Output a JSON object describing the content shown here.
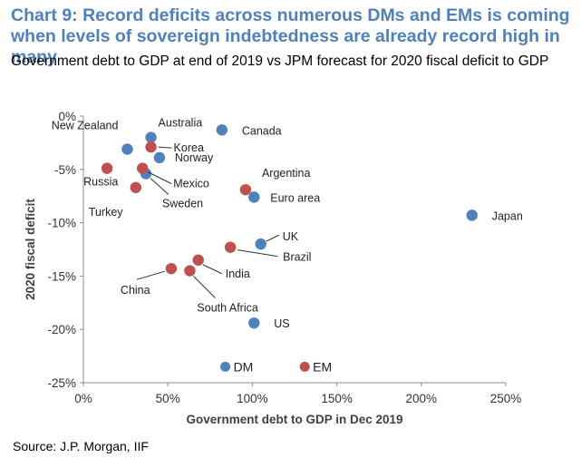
{
  "header": {
    "title": "Chart 9: Record deficits across numerous DMs and EMs is coming when levels of sovereign indebtedness are already record high in many",
    "subtitle": "Government debt to GDP at end of 2019 vs JPM forecast for 2020 fiscal deficit to GDP"
  },
  "footer": {
    "source": "Source: J.P. Morgan, IIF"
  },
  "chart_data": {
    "type": "scatter",
    "xlabel": "Government debt to GDP in Dec 2019",
    "ylabel": "2020 fiscal deficit",
    "xlim": [
      0,
      250
    ],
    "ylim": [
      -25,
      0
    ],
    "x_ticks": [
      "0%",
      "50%",
      "100%",
      "150%",
      "200%",
      "250%"
    ],
    "y_ticks": [
      "0%",
      "-5%",
      "-10%",
      "-15%",
      "-20%",
      "-25%"
    ],
    "grid": false,
    "legend": "bottom-center",
    "series": [
      {
        "name": "DM",
        "color": "#4f81bd",
        "points": [
          {
            "label": "Australia",
            "x": 40,
            "y": -2.0
          },
          {
            "label": "Canada",
            "x": 82,
            "y": -1.3
          },
          {
            "label": "New Zealand",
            "x": 26,
            "y": -3.1
          },
          {
            "label": "Norway",
            "x": 45,
            "y": -3.9
          },
          {
            "label": "Sweden",
            "x": 37,
            "y": -5.4
          },
          {
            "label": "Euro area",
            "x": 101,
            "y": -7.6
          },
          {
            "label": "Japan",
            "x": 230,
            "y": -9.3
          },
          {
            "label": "UK",
            "x": 105,
            "y": -12.0
          },
          {
            "label": "US",
            "x": 101,
            "y": -19.4
          }
        ]
      },
      {
        "name": "EM",
        "color": "#c0504d",
        "points": [
          {
            "label": "Korea",
            "x": 40,
            "y": -2.9
          },
          {
            "label": "Russia",
            "x": 14,
            "y": -4.9
          },
          {
            "label": "Mexico",
            "x": 35,
            "y": -4.9
          },
          {
            "label": "Turkey",
            "x": 31,
            "y": -6.7
          },
          {
            "label": "Argentina",
            "x": 96,
            "y": -6.9
          },
          {
            "label": "Brazil",
            "x": 87,
            "y": -12.3
          },
          {
            "label": "India",
            "x": 68,
            "y": -13.5
          },
          {
            "label": "China",
            "x": 52,
            "y": -14.3
          },
          {
            "label": "South Africa",
            "x": 63,
            "y": -14.5
          }
        ]
      }
    ]
  }
}
